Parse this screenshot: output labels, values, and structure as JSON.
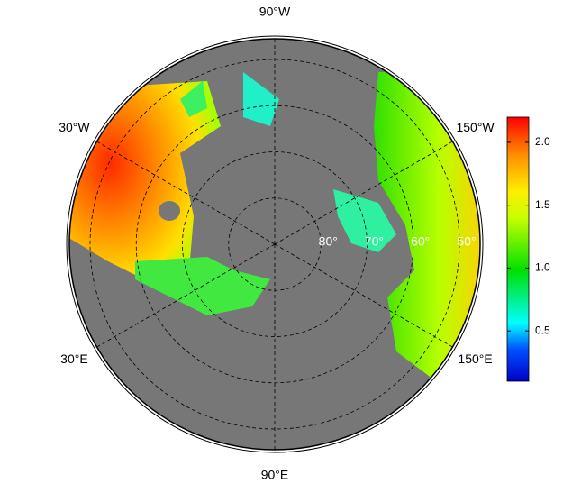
{
  "map": {
    "longitude_labels": [
      {
        "value": -90,
        "label": "90°W"
      },
      {
        "value": -30,
        "label": "30°W"
      },
      {
        "value": -150,
        "label": "150°W"
      },
      {
        "value": 30,
        "label": "30°E"
      },
      {
        "value": 150,
        "label": "150°E"
      },
      {
        "value": 90,
        "label": "90°E"
      }
    ],
    "latitude_labels": [
      {
        "value": 80,
        "label": "80°"
      },
      {
        "value": 70,
        "label": "70°"
      },
      {
        "value": 60,
        "label": "60°"
      },
      {
        "value": 50,
        "label": "50°"
      }
    ],
    "colorbar": {
      "clim": [
        0.1,
        2.2
      ],
      "ticks": [
        0.5,
        {
          "value": 1,
          "label": "1.0"
        },
        1.5,
        {
          "value": 2,
          "label": "2.0"
        }
      ]
    }
  }
}
